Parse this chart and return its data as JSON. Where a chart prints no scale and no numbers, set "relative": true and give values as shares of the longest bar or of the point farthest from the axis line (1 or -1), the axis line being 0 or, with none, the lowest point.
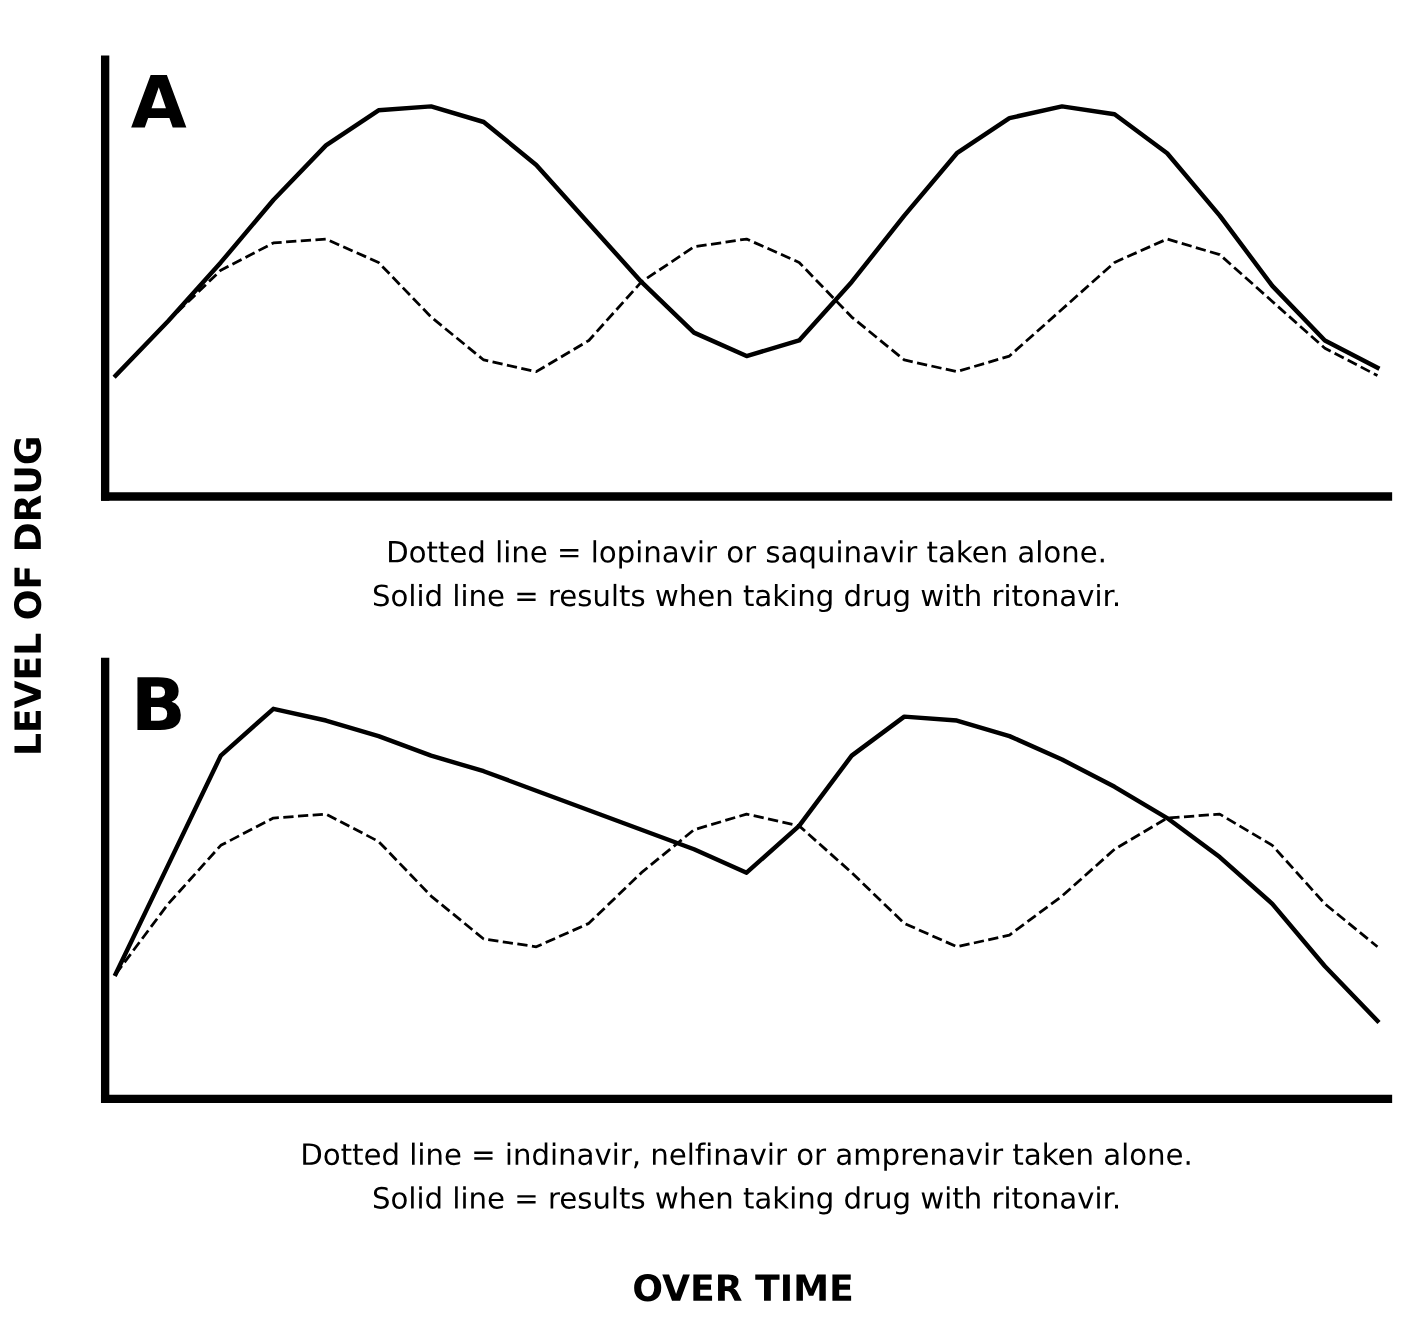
{
  "chart_data": [
    {
      "type": "line",
      "title": "A",
      "ylabel": "LEVEL OF DRUG",
      "relative": true,
      "grid": false,
      "marker": "none",
      "categories": [
        null,
        null,
        null,
        null,
        null,
        null,
        null,
        null,
        null,
        null,
        null,
        null,
        null,
        null,
        null,
        null,
        null,
        null,
        null,
        null,
        null,
        null,
        null,
        null,
        null
      ],
      "series": [
        {
          "color": "#000000",
          "line_style": "solid",
          "values": [
            0.31,
            0.45,
            0.6,
            0.76,
            0.9,
            0.99,
            1.0,
            0.96,
            0.85,
            0.7,
            0.55,
            0.42,
            0.36,
            0.4,
            0.55,
            0.72,
            0.88,
            0.97,
            1.0,
            0.98,
            0.88,
            0.72,
            0.54,
            0.4,
            0.33
          ]
        },
        {
          "color": "#000000",
          "line_style": "dashed",
          "values": [
            0.31,
            0.45,
            0.58,
            0.65,
            0.66,
            0.6,
            0.46,
            0.35,
            0.32,
            0.4,
            0.55,
            0.64,
            0.66,
            0.6,
            0.46,
            0.35,
            0.32,
            0.36,
            0.48,
            0.6,
            0.66,
            0.62,
            0.5,
            0.38,
            0.31
          ]
        }
      ],
      "annotations": [
        "Dotted line = lopinavir or saquinavir taken alone.",
        "Solid line = results when taking drug with ritonavir."
      ]
    },
    {
      "type": "line",
      "title": "B",
      "xlabel": "OVER TIME",
      "relative": true,
      "grid": false,
      "marker": "none",
      "categories": [
        null,
        null,
        null,
        null,
        null,
        null,
        null,
        null,
        null,
        null,
        null,
        null,
        null,
        null,
        null,
        null,
        null,
        null,
        null,
        null,
        null,
        null,
        null,
        null,
        null
      ],
      "series": [
        {
          "color": "#000000",
          "line_style": "solid",
          "values": [
            0.32,
            0.6,
            0.88,
            1.0,
            0.97,
            0.93,
            0.88,
            0.84,
            0.79,
            0.74,
            0.69,
            0.64,
            0.58,
            0.7,
            0.88,
            0.98,
            0.97,
            0.93,
            0.87,
            0.8,
            0.72,
            0.62,
            0.5,
            0.34,
            0.2
          ]
        },
        {
          "color": "#000000",
          "line_style": "dashed",
          "values": [
            0.32,
            0.5,
            0.65,
            0.72,
            0.73,
            0.66,
            0.52,
            0.41,
            0.39,
            0.45,
            0.58,
            0.69,
            0.73,
            0.7,
            0.58,
            0.45,
            0.39,
            0.42,
            0.52,
            0.64,
            0.72,
            0.73,
            0.65,
            0.5,
            0.39
          ]
        }
      ],
      "annotations": [
        "Dotted line = indinavir, nelfinavir or amprenavir taken alone.",
        "Solid line = results when taking drug with ritonavir."
      ]
    }
  ]
}
